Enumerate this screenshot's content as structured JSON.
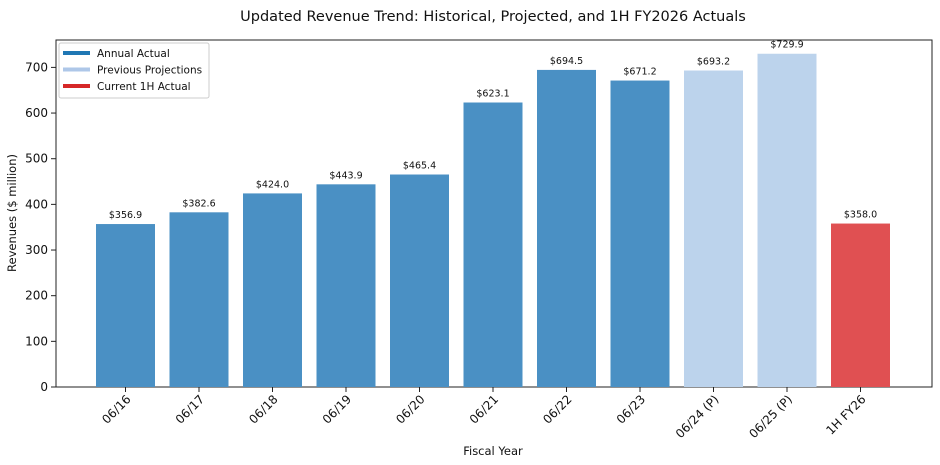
{
  "chart_data": {
    "type": "bar",
    "title": "Updated Revenue Trend: Historical, Projected, and 1H FY2026 Actuals",
    "xlabel": "Fiscal Year",
    "ylabel": "Revenues ($ million)",
    "ylim": [
      0,
      760
    ],
    "yticks": [
      0,
      100,
      200,
      300,
      400,
      500,
      600,
      700
    ],
    "grid": false,
    "legend_position": "top-left",
    "categories": [
      "06/16",
      "06/17",
      "06/18",
      "06/19",
      "06/20",
      "06/21",
      "06/22",
      "06/23",
      "06/24 (P)",
      "06/25 (P)",
      "1H FY26"
    ],
    "values": [
      356.9,
      382.6,
      424.0,
      443.9,
      465.4,
      623.1,
      694.5,
      671.2,
      693.2,
      729.9,
      358.0
    ],
    "data_labels": [
      "$356.9",
      "$382.6",
      "$424.0",
      "$443.9",
      "$465.4",
      "$623.1",
      "$694.5",
      "$671.2",
      "$693.2",
      "$729.9",
      "$358.0"
    ],
    "bar_groups": [
      0,
      0,
      0,
      0,
      0,
      0,
      0,
      0,
      1,
      1,
      2
    ],
    "legend": [
      {
        "label": "Annual Actual",
        "color": "#1f77b4",
        "bar_color": "#4a90c4"
      },
      {
        "label": "Previous Projections",
        "color": "#aec7e8",
        "bar_color": "#bcd3ec"
      },
      {
        "label": "Current 1H Actual",
        "color": "#d62728",
        "bar_color": "#e05052"
      }
    ]
  }
}
